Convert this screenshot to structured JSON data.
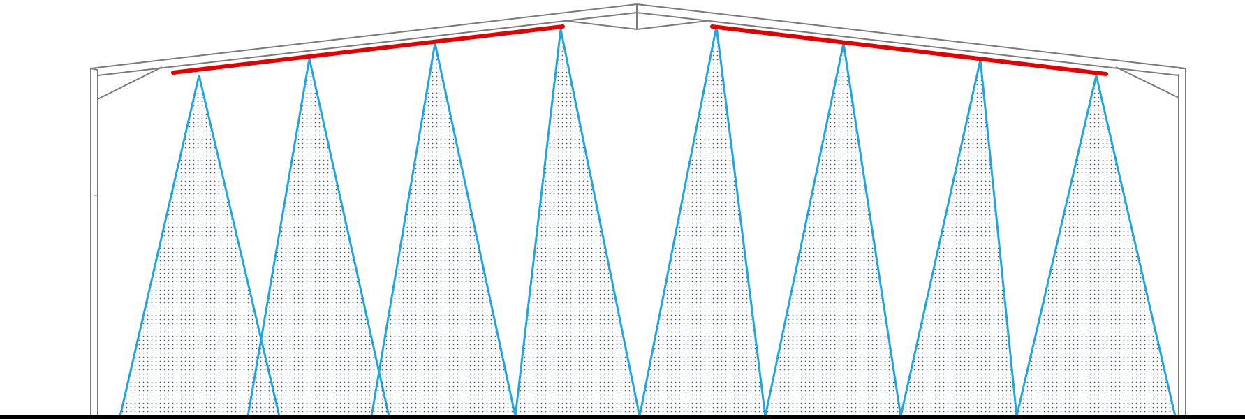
{
  "diagram": {
    "subject": "pitched-roof-building-cross-section",
    "colors": {
      "frame": "#7a7a7a",
      "cone": "#1fa6e0",
      "cone_dots": "#2a5fbf",
      "ridge_highlight": "#e60000",
      "floor": "#000000",
      "background": "#ffffff"
    },
    "cone_count": 8,
    "highlight_segments": 2
  }
}
